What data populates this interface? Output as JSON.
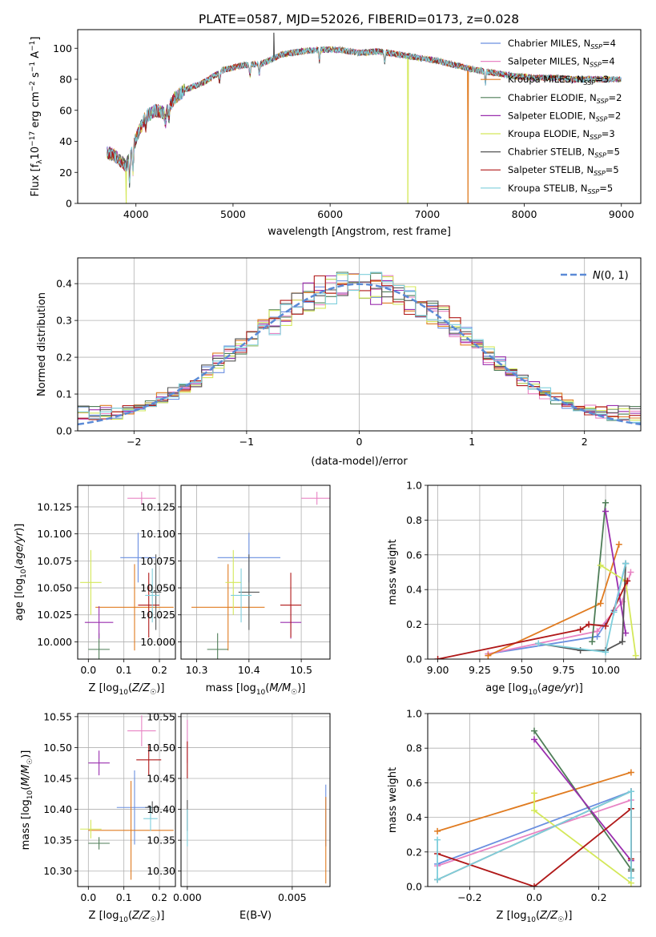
{
  "title": "PLATE=0587, MJD=52026, FIBERID=0173, z=0.028",
  "colors": {
    "chabrier_miles": "#6a8fe0",
    "salpeter_miles": "#e884c4",
    "kroupa_miles": "#e07b20",
    "chabrier_elodie": "#4e7d57",
    "salpeter_elodie": "#9a2eae",
    "kroupa_elodie": "#d4e85a",
    "chabrier_stelib": "#555555",
    "salpeter_stelib": "#b01818",
    "kroupa_stelib": "#7fcfdc",
    "normal_curve": "#5b8ad6"
  },
  "legend_entries": [
    {
      "key": "chabrier_miles",
      "label": "Chabrier MILES, N",
      "sub": "SSP",
      "tail": "=4"
    },
    {
      "key": "salpeter_miles",
      "label": "Salpeter MILES, N",
      "sub": "SSP",
      "tail": "=4"
    },
    {
      "key": "kroupa_miles",
      "label": "Kroupa MILES, N",
      "sub": "SSP",
      "tail": "=3"
    },
    {
      "key": "chabrier_elodie",
      "label": "Chabrier ELODIE, N",
      "sub": "SSP",
      "tail": "=2"
    },
    {
      "key": "salpeter_elodie",
      "label": "Salpeter ELODIE, N",
      "sub": "SSP",
      "tail": "=2"
    },
    {
      "key": "kroupa_elodie",
      "label": "Kroupa ELODIE, N",
      "sub": "SSP",
      "tail": "=3"
    },
    {
      "key": "chabrier_stelib",
      "label": "Chabrier STELIB, N",
      "sub": "SSP",
      "tail": "=5"
    },
    {
      "key": "salpeter_stelib",
      "label": "Salpeter STELIB, N",
      "sub": "SSP",
      "tail": "=5"
    },
    {
      "key": "kroupa_stelib",
      "label": "Kroupa STELIB, N",
      "sub": "SSP",
      "tail": "=5"
    }
  ],
  "chart_data": [
    {
      "id": "spectrum",
      "type": "line",
      "xlabel": "wavelength [Angstrom, rest frame]",
      "ylabel": "Flux [f_λ 10^-17 erg cm^-2 s^-1 A^-1]",
      "xlim": [
        3400,
        9200
      ],
      "ylim": [
        0,
        112
      ],
      "xticks": [
        4000,
        5000,
        6000,
        7000,
        8000,
        9000
      ],
      "yticks": [
        0,
        20,
        40,
        60,
        80,
        100
      ],
      "continuum": [
        [
          3700,
          33
        ],
        [
          3800,
          30
        ],
        [
          3900,
          24
        ],
        [
          3950,
          32
        ],
        [
          4000,
          42
        ],
        [
          4100,
          56
        ],
        [
          4200,
          60
        ],
        [
          4300,
          58
        ],
        [
          4400,
          68
        ],
        [
          4500,
          73
        ],
        [
          4700,
          78
        ],
        [
          4900,
          86
        ],
        [
          5100,
          89
        ],
        [
          5300,
          90
        ],
        [
          5500,
          96
        ],
        [
          5700,
          98
        ],
        [
          5900,
          99
        ],
        [
          6100,
          99
        ],
        [
          6300,
          97
        ],
        [
          6500,
          98
        ],
        [
          6700,
          96
        ],
        [
          6900,
          94
        ],
        [
          7000,
          93
        ],
        [
          7100,
          92
        ],
        [
          7300,
          89
        ],
        [
          7500,
          86
        ],
        [
          7700,
          84
        ],
        [
          7900,
          82
        ],
        [
          8100,
          81
        ],
        [
          8300,
          81
        ],
        [
          8500,
          80
        ],
        [
          8700,
          80
        ],
        [
          8900,
          80
        ],
        [
          9000,
          80
        ]
      ],
      "drops": [
        {
          "key": "kroupa_elodie",
          "wavelength": 3900,
          "value": 0
        },
        {
          "key": "kroupa_elodie",
          "wavelength": 6800,
          "value": 0
        },
        {
          "key": "kroupa_miles",
          "wavelength": 7420,
          "value": 0
        },
        {
          "key": "chabrier_stelib",
          "wavelength": 5420,
          "value": 110
        }
      ]
    },
    {
      "id": "residuals",
      "type": "histogram",
      "xlabel": "(data-model)/error",
      "ylabel": "Normed distribution",
      "xlim": [
        -2.5,
        2.5
      ],
      "ylim": [
        0,
        0.47
      ],
      "xticks": [
        -2,
        -1,
        0,
        1,
        2
      ],
      "yticks": [
        0.0,
        0.1,
        0.2,
        0.3,
        0.4
      ],
      "bin_width": 0.1,
      "curve_label": "N(0,1)"
    },
    {
      "id": "age_vs_Z",
      "type": "scatter",
      "xlabel": "Z [log10(Z/Z☉)]",
      "ylabel": "age [log10(age/yr)]",
      "xlim": [
        -0.03,
        0.245
      ],
      "ylim": [
        9.984,
        10.145
      ],
      "xticks": [
        0.0,
        0.1,
        0.2
      ],
      "yticks": [
        10.0,
        10.025,
        10.05,
        10.075,
        10.1,
        10.125
      ],
      "points": [
        {
          "key": "chabrier_miles",
          "x": 0.14,
          "y": 10.078,
          "xerr": 0.05,
          "yerr": 0.023
        },
        {
          "key": "salpeter_miles",
          "x": 0.15,
          "y": 10.133,
          "xerr": 0.04,
          "yerr": 0.006
        },
        {
          "key": "kroupa_miles",
          "x": 0.13,
          "y": 10.032,
          "xerr": 0.11,
          "yerr": 0.04
        },
        {
          "key": "chabrier_elodie",
          "x": 0.03,
          "y": 9.993,
          "xerr": 0.03,
          "yerr": 0.015
        },
        {
          "key": "salpeter_elodie",
          "x": 0.03,
          "y": 10.018,
          "xerr": 0.04,
          "yerr": 0.015
        },
        {
          "key": "kroupa_elodie",
          "x": 0.007,
          "y": 10.055,
          "xerr": 0.03,
          "yerr": 0.03
        },
        {
          "key": "chabrier_stelib",
          "x": 0.19,
          "y": 10.046,
          "xerr": 0.015,
          "yerr": 0.035
        },
        {
          "key": "salpeter_stelib",
          "x": 0.17,
          "y": 10.034,
          "xerr": 0.03,
          "yerr": 0.03
        },
        {
          "key": "kroupa_stelib",
          "x": 0.18,
          "y": 10.043,
          "xerr": 0.02,
          "yerr": 0.025
        }
      ]
    },
    {
      "id": "age_vs_mass",
      "type": "scatter",
      "xlabel": "mass [log10(M/M☉)]",
      "ylabel": "",
      "xlim": [
        10.27,
        10.555
      ],
      "ylim": [
        9.984,
        10.145
      ],
      "xticks": [
        10.3,
        10.4,
        10.5
      ],
      "yticks": [
        10.0,
        10.025,
        10.05,
        10.075,
        10.1,
        10.125
      ],
      "points": [
        {
          "key": "chabrier_miles",
          "x": 10.4,
          "y": 10.078,
          "xerr": 0.06,
          "yerr": 0.023
        },
        {
          "key": "salpeter_miles",
          "x": 10.53,
          "y": 10.133,
          "xerr": 0.03,
          "yerr": 0.006
        },
        {
          "key": "kroupa_miles",
          "x": 10.36,
          "y": 10.032,
          "xerr": 0.07,
          "yerr": 0.04
        },
        {
          "key": "chabrier_elodie",
          "x": 10.34,
          "y": 9.993,
          "xerr": 0.02,
          "yerr": 0.015
        },
        {
          "key": "salpeter_elodie",
          "x": 10.48,
          "y": 10.018,
          "xerr": 0.02,
          "yerr": 0.015
        },
        {
          "key": "kroupa_elodie",
          "x": 10.37,
          "y": 10.055,
          "xerr": 0.015,
          "yerr": 0.03
        },
        {
          "key": "chabrier_stelib",
          "x": 10.4,
          "y": 10.046,
          "xerr": 0.02,
          "yerr": 0.035
        },
        {
          "key": "salpeter_stelib",
          "x": 10.48,
          "y": 10.034,
          "xerr": 0.02,
          "yerr": 0.03
        },
        {
          "key": "kroupa_stelib",
          "x": 10.385,
          "y": 10.043,
          "xerr": 0.02,
          "yerr": 0.025
        }
      ]
    },
    {
      "id": "weight_vs_age",
      "type": "line",
      "xlabel": "age [log10(age/yr)]",
      "ylabel": "mass weight",
      "xlim": [
        8.94,
        10.21
      ],
      "ylim": [
        0.0,
        1.0
      ],
      "xticks": [
        9.0,
        9.25,
        9.5,
        9.75,
        10.0
      ],
      "yticks": [
        0.0,
        0.2,
        0.4,
        0.6,
        0.8,
        1.0
      ],
      "series": [
        {
          "key": "chabrier_miles",
          "points": [
            [
              9.3,
              0.03
            ],
            [
              9.95,
              0.13
            ],
            [
              10.05,
              0.28
            ],
            [
              10.12,
              0.55
            ]
          ]
        },
        {
          "key": "salpeter_miles",
          "points": [
            [
              9.3,
              0.03
            ],
            [
              9.95,
              0.16
            ],
            [
              10.1,
              0.33
            ],
            [
              10.15,
              0.5
            ]
          ]
        },
        {
          "key": "kroupa_miles",
          "points": [
            [
              9.3,
              0.02
            ],
            [
              9.97,
              0.32
            ],
            [
              10.08,
              0.66
            ]
          ]
        },
        {
          "key": "chabrier_elodie",
          "points": [
            [
              9.92,
              0.1
            ],
            [
              10.0,
              0.9
            ]
          ]
        },
        {
          "key": "salpeter_elodie",
          "points": [
            [
              10.0,
              0.85
            ],
            [
              10.12,
              0.15
            ]
          ]
        },
        {
          "key": "kroupa_elodie",
          "points": [
            [
              9.97,
              0.54
            ],
            [
              10.12,
              0.45
            ],
            [
              10.18,
              0.02
            ]
          ]
        },
        {
          "key": "chabrier_stelib",
          "points": [
            [
              9.6,
              0.09
            ],
            [
              9.85,
              0.05
            ],
            [
              10.0,
              0.05
            ],
            [
              10.1,
              0.1
            ],
            [
              10.12,
              0.55
            ]
          ]
        },
        {
          "key": "salpeter_stelib",
          "points": [
            [
              9.0,
              0.0
            ],
            [
              9.85,
              0.17
            ],
            [
              9.9,
              0.2
            ],
            [
              10.0,
              0.19
            ],
            [
              10.13,
              0.45
            ]
          ]
        },
        {
          "key": "kroupa_stelib",
          "points": [
            [
              9.6,
              0.09
            ],
            [
              10.0,
              0.04
            ],
            [
              10.05,
              0.27
            ],
            [
              10.12,
              0.55
            ]
          ]
        }
      ]
    },
    {
      "id": "mass_vs_Z",
      "type": "scatter",
      "xlabel": "Z [log10(Z/Z☉)]",
      "ylabel": "mass [log10(M/M☉)]",
      "xlim": [
        -0.03,
        0.245
      ],
      "ylim": [
        10.275,
        10.555
      ],
      "xticks": [
        0.0,
        0.1,
        0.2
      ],
      "yticks": [
        10.3,
        10.35,
        10.4,
        10.45,
        10.5,
        10.55
      ],
      "points": [
        {
          "key": "chabrier_miles",
          "x": 0.13,
          "y": 10.403,
          "xerr": 0.05,
          "yerr": 0.06
        },
        {
          "key": "salpeter_miles",
          "x": 0.15,
          "y": 10.527,
          "xerr": 0.04,
          "yerr": 0.025
        },
        {
          "key": "kroupa_miles",
          "x": 0.12,
          "y": 10.366,
          "xerr": 0.12,
          "yerr": 0.08
        },
        {
          "key": "chabrier_elodie",
          "x": 0.03,
          "y": 10.345,
          "xerr": 0.03,
          "yerr": 0.01
        },
        {
          "key": "salpeter_elodie",
          "x": 0.03,
          "y": 10.475,
          "xerr": 0.03,
          "yerr": 0.02
        },
        {
          "key": "kroupa_elodie",
          "x": 0.007,
          "y": 10.368,
          "xerr": 0.03,
          "yerr": 0.015
        },
        {
          "key": "chabrier_stelib",
          "x": 0.18,
          "y": 10.403,
          "xerr": 0.02,
          "yerr": 0.01
        },
        {
          "key": "salpeter_stelib",
          "x": 0.17,
          "y": 10.48,
          "xerr": 0.035,
          "yerr": 0.025
        },
        {
          "key": "kroupa_stelib",
          "x": 0.175,
          "y": 10.385,
          "xerr": 0.02,
          "yerr": 0.02
        }
      ]
    },
    {
      "id": "mass_vs_EBV",
      "type": "scatter",
      "xlabel": "E(B-V)",
      "ylabel": "",
      "xlim": [
        -0.0003,
        0.0068
      ],
      "ylim": [
        10.275,
        10.555
      ],
      "xticks": [
        0.0,
        0.005
      ],
      "yticks": [
        10.3,
        10.35,
        10.4,
        10.45,
        10.5,
        10.55
      ],
      "points": [
        {
          "key": "salpeter_miles",
          "x": 0.0,
          "y": 10.51,
          "yerr": 0.035
        },
        {
          "key": "salpeter_stelib",
          "x": 0.0,
          "y": 10.48,
          "yerr": 0.03
        },
        {
          "key": "chabrier_stelib",
          "x": 0.0,
          "y": 10.39,
          "yerr": 0.025
        },
        {
          "key": "kroupa_stelib",
          "x": 0.0,
          "y": 10.37,
          "yerr": 0.03
        },
        {
          "key": "chabrier_miles",
          "x": 0.0066,
          "y": 10.39,
          "yerr": 0.05
        },
        {
          "key": "kroupa_miles",
          "x": 0.0066,
          "y": 10.35,
          "yerr": 0.07
        }
      ]
    },
    {
      "id": "weight_vs_Z",
      "type": "line",
      "xlabel": "Z [log10(Z/Z☉)]",
      "ylabel": "mass weight",
      "xlim": [
        -0.33,
        0.33
      ],
      "ylim": [
        0.0,
        1.0
      ],
      "xticks": [
        -0.2,
        0.0,
        0.2
      ],
      "yticks": [
        0.0,
        0.2,
        0.4,
        0.6,
        0.8,
        1.0
      ],
      "series": [
        {
          "key": "chabrier_miles",
          "points": [
            [
              -0.3,
              0.13
            ],
            [
              0.3,
              0.55
            ]
          ]
        },
        {
          "key": "salpeter_miles",
          "points": [
            [
              -0.3,
              0.12
            ],
            [
              0.3,
              0.5
            ]
          ]
        },
        {
          "key": "kroupa_miles",
          "points": [
            [
              -0.3,
              0.32
            ],
            [
              0.3,
              0.66
            ]
          ]
        },
        {
          "key": "chabrier_elodie",
          "points": [
            [
              0.0,
              0.9
            ],
            [
              0.3,
              0.1
            ]
          ]
        },
        {
          "key": "salpeter_elodie",
          "points": [
            [
              0.0,
              0.85
            ],
            [
              0.3,
              0.15
            ]
          ]
        },
        {
          "key": "kroupa_elodie",
          "points": [
            [
              0.0,
              0.54
            ],
            [
              0.0,
              0.44
            ],
            [
              0.3,
              0.02
            ]
          ]
        },
        {
          "key": "chabrier_stelib",
          "points": [
            [
              -0.3,
              0.04
            ],
            [
              0.3,
              0.55
            ],
            [
              0.3,
              0.09
            ]
          ]
        },
        {
          "key": "salpeter_stelib",
          "points": [
            [
              -0.3,
              0.19
            ],
            [
              0.0,
              0.0
            ],
            [
              0.3,
              0.45
            ],
            [
              0.3,
              0.16
            ]
          ]
        },
        {
          "key": "kroupa_stelib",
          "points": [
            [
              -0.3,
              0.27
            ],
            [
              -0.3,
              0.04
            ],
            [
              0.3,
              0.55
            ],
            [
              0.3,
              0.05
            ]
          ]
        }
      ]
    }
  ]
}
